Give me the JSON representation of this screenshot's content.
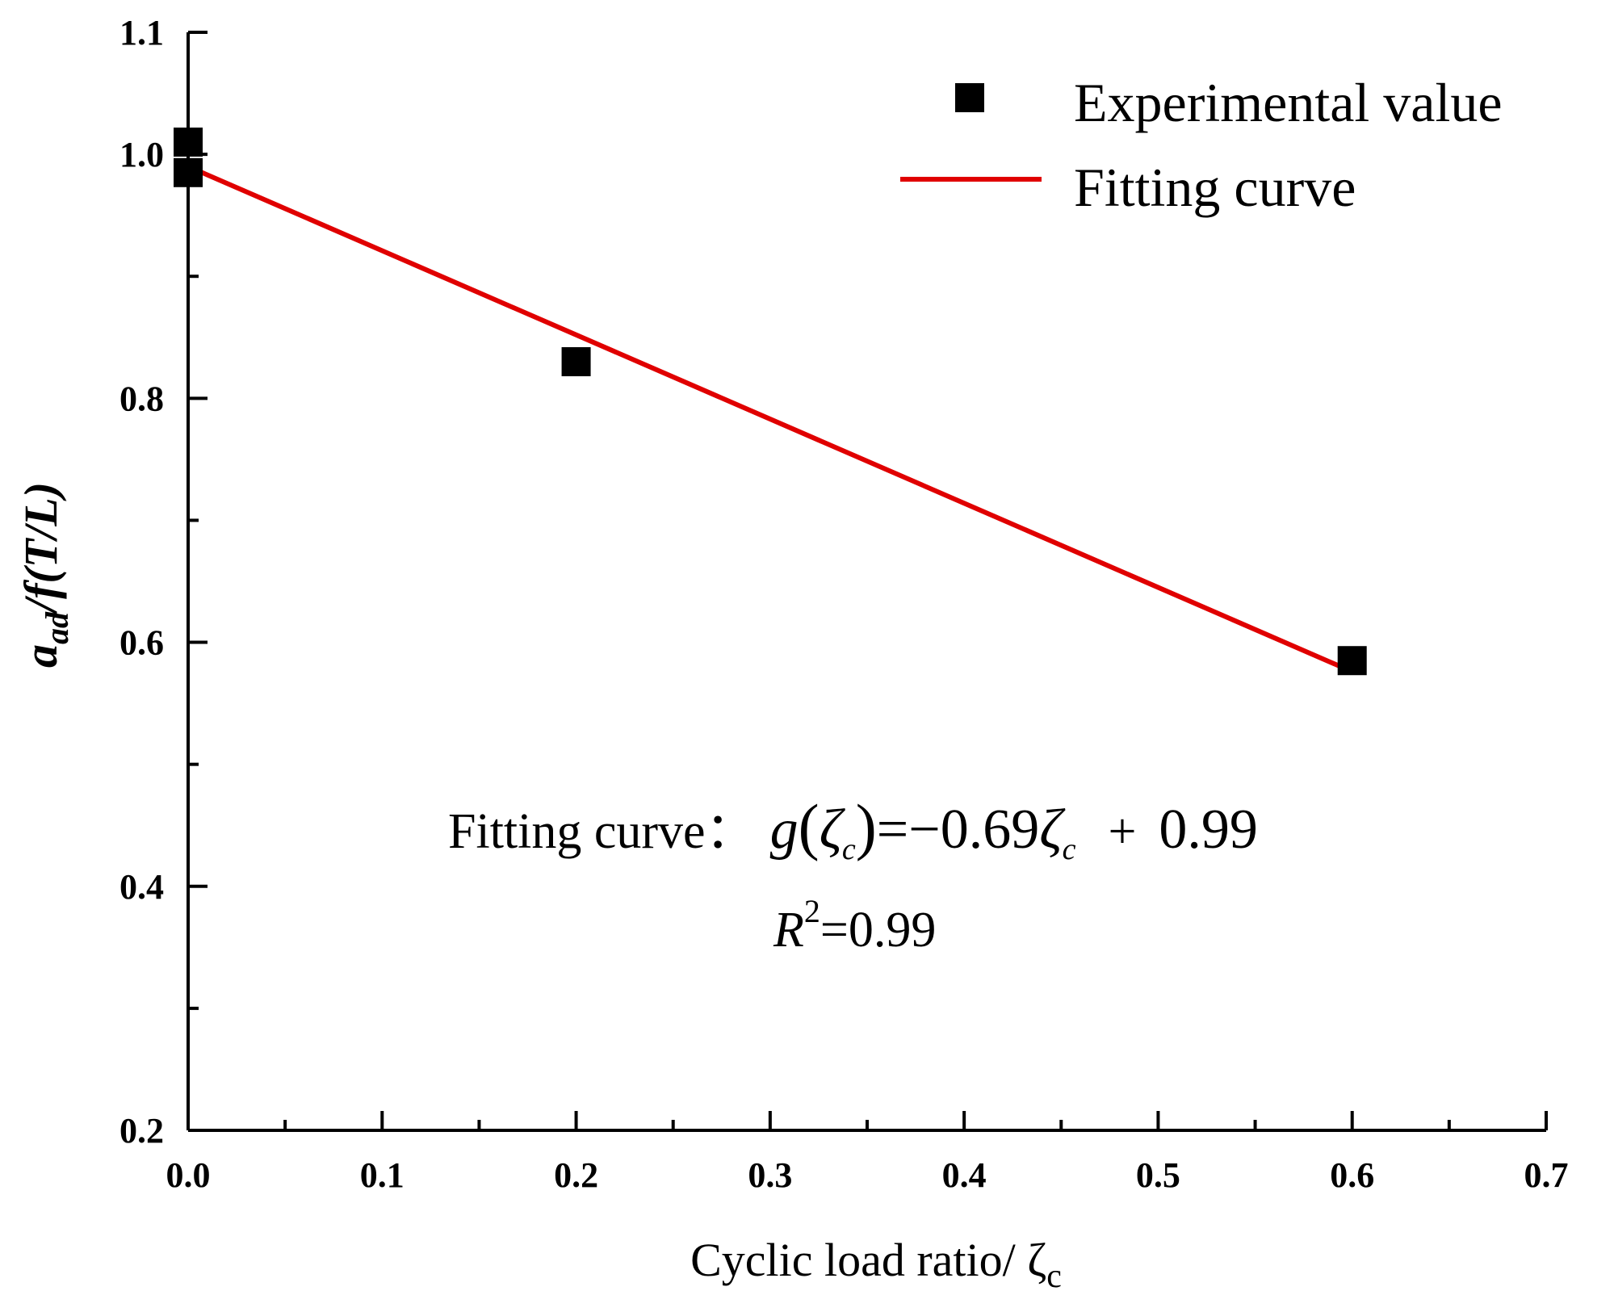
{
  "chart_data": {
    "type": "scatter",
    "xlabel": "Cyclic load ratio/ ζ",
    "xlabel_sub": "c",
    "ylabel": "a",
    "ylabel_sub": "ad",
    "ylabel_rest": "/f(T/L)",
    "xlim": [
      0.0,
      0.7
    ],
    "ylim": [
      0.2,
      1.1
    ],
    "x_ticks": [
      "0.0",
      "0.1",
      "0.2",
      "0.3",
      "0.4",
      "0.5",
      "0.6",
      "0.7"
    ],
    "y_ticks": [
      "0.2",
      "0.4",
      "0.6",
      "0.8",
      "1.0",
      "1.1"
    ],
    "grid": false,
    "legend_position": "top-right",
    "series": [
      {
        "name": "Experimental value",
        "kind": "scatter",
        "color": "#000000",
        "points": [
          {
            "x": 0.0,
            "y": 1.01
          },
          {
            "x": 0.0,
            "y": 0.985
          },
          {
            "x": 0.2,
            "y": 0.83
          },
          {
            "x": 0.6,
            "y": 0.585
          }
        ]
      },
      {
        "name": "Fitting curve",
        "kind": "line",
        "color": "#e00000",
        "slope": -0.69,
        "intercept": 0.99,
        "x_range": [
          0.0,
          0.6
        ]
      }
    ],
    "annotation": {
      "label": "Fitting curve：",
      "eq_lhs_fn": "g",
      "zeta": "ζ",
      "zeta_sub": "c",
      "eq_rhs_prefix": "=−0.69",
      "eq_plus": "+",
      "eq_intercept": "0.99",
      "r2_symbol": "R",
      "r2_exp": "2",
      "r2_value": "=0.99"
    }
  }
}
